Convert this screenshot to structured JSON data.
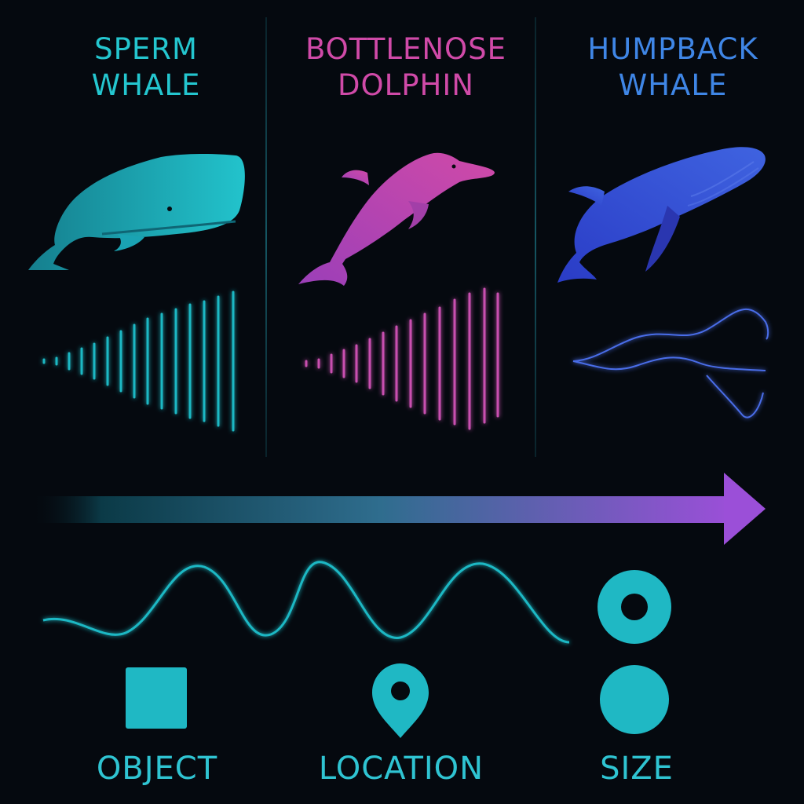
{
  "columns": [
    {
      "line1": "SPERM",
      "line2": "WHALE",
      "color": "#24c6cf"
    },
    {
      "line1": "BOTTLENOSE",
      "line2": "DOLPHIN",
      "color": "#d04aa8"
    },
    {
      "line1": "HUMPBACK",
      "line2": "WHALE",
      "color": "#3f86e6"
    }
  ],
  "legend": [
    {
      "label": "OBJECT",
      "icon": "square-icon"
    },
    {
      "label": "LOCATION",
      "icon": "location-pin-icon"
    },
    {
      "label": "SIZE",
      "icon": "circle-icon"
    }
  ],
  "colors": {
    "teal": "#1fb8c4",
    "pink": "#c94fb0",
    "blue": "#3556d8",
    "arrow_start": "#0a2a38",
    "arrow_end": "#9b4fd8"
  }
}
